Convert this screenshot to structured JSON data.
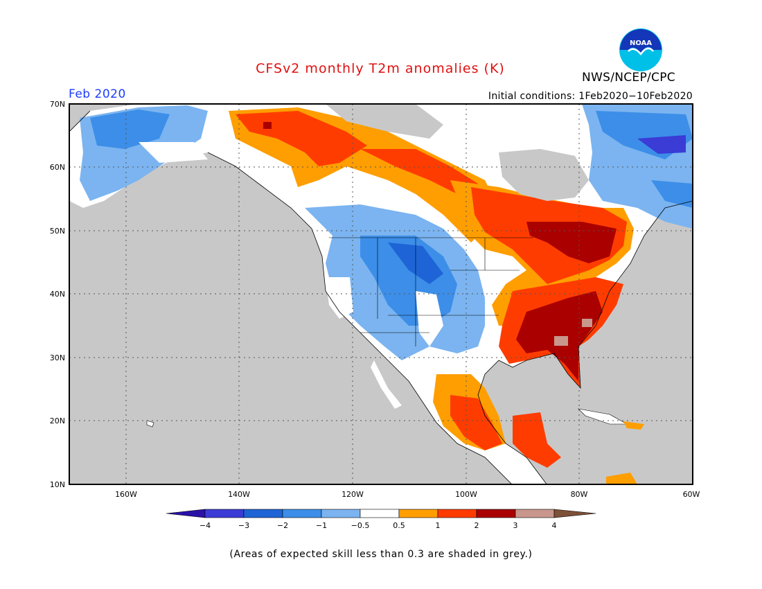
{
  "header": {
    "title": "CFSv2 monthly T2m anomalies (K)",
    "month": "Feb 2020",
    "initial_conditions": "Initial conditions: 1Feb2020−10Feb2020",
    "agency": "NWS/NCEP/CPC",
    "logo_text": "NOAA"
  },
  "map": {
    "lon_range": [
      -170,
      -60
    ],
    "lat_range": [
      10,
      70
    ],
    "lat_labels": [
      "70N",
      "60N",
      "50N",
      "40N",
      "30N",
      "20N",
      "10N"
    ],
    "lon_labels": [
      "160W",
      "140W",
      "120W",
      "100W",
      "80W",
      "60W"
    ],
    "ocean_color": "#c8c8c8",
    "land_color": "#ffffff"
  },
  "legend": {
    "labels": [
      "−4",
      "−3",
      "−2",
      "−1",
      "−0.5",
      "0.5",
      "1",
      "2",
      "3",
      "4"
    ],
    "colors": [
      "#2a12a8",
      "#3b3bd6",
      "#1e64d6",
      "#3c8ee8",
      "#7bb4f0",
      "#ffffff",
      "#ff9e00",
      "#ff3c00",
      "#aa0000",
      "#c8968c",
      "#7d5038"
    ]
  },
  "footer": {
    "note": "(Areas of expected skill less than 0.3 are shaded in grey.)"
  }
}
